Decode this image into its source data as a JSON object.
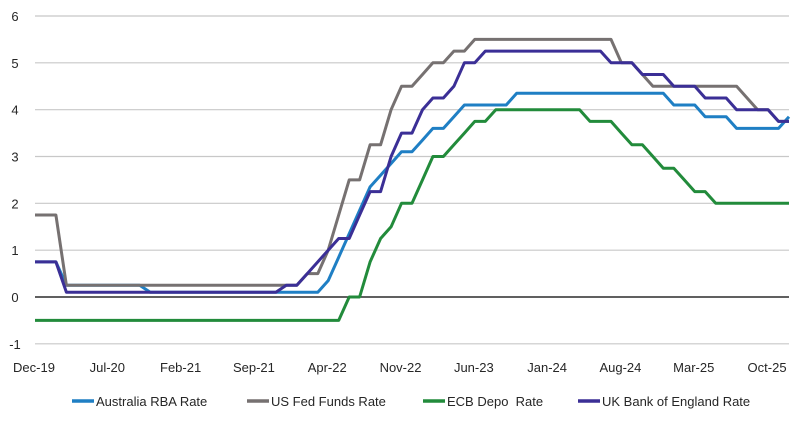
{
  "chart_data": {
    "type": "line",
    "title": "",
    "xlabel": "",
    "ylabel": "",
    "ylim": [
      -1,
      6
    ],
    "yticks": [
      -1,
      0,
      1,
      2,
      3,
      4,
      5,
      6
    ],
    "grid": "horizontal",
    "legend_position": "bottom",
    "x_frequency": "monthly",
    "x_start": "Dec-19",
    "x_end": "Dec-25",
    "x_tick_labels": [
      "Dec-19",
      "Jul-20",
      "Feb-21",
      "Sep-21",
      "Apr-22",
      "Nov-22",
      "Jun-23",
      "Jan-24",
      "Aug-24",
      "Mar-25",
      "Oct-25"
    ],
    "series": [
      {
        "name": "Australia RBA Rate",
        "color": "#1f7fc4",
        "values": [
          0.75,
          0.75,
          0.75,
          0.25,
          0.25,
          0.25,
          0.25,
          0.25,
          0.25,
          0.25,
          0.25,
          0.1,
          0.1,
          0.1,
          0.1,
          0.1,
          0.1,
          0.1,
          0.1,
          0.1,
          0.1,
          0.1,
          0.1,
          0.1,
          0.1,
          0.1,
          0.1,
          0.1,
          0.35,
          0.85,
          1.35,
          1.85,
          2.35,
          2.6,
          2.85,
          3.1,
          3.1,
          3.35,
          3.6,
          3.6,
          3.85,
          4.1,
          4.1,
          4.1,
          4.1,
          4.1,
          4.35,
          4.35,
          4.35,
          4.35,
          4.35,
          4.35,
          4.35,
          4.35,
          4.35,
          4.35,
          4.35,
          4.35,
          4.35,
          4.35,
          4.35,
          4.1,
          4.1,
          4.1,
          3.85,
          3.85,
          3.85,
          3.6,
          3.6,
          3.6,
          3.6,
          3.6,
          3.85
        ]
      },
      {
        "name": "US Fed Funds Rate",
        "color": "#767171",
        "values": [
          1.75,
          1.75,
          1.75,
          0.25,
          0.25,
          0.25,
          0.25,
          0.25,
          0.25,
          0.25,
          0.25,
          0.25,
          0.25,
          0.25,
          0.25,
          0.25,
          0.25,
          0.25,
          0.25,
          0.25,
          0.25,
          0.25,
          0.25,
          0.25,
          0.25,
          0.25,
          0.5,
          0.5,
          1.0,
          1.75,
          2.5,
          2.5,
          3.25,
          3.25,
          4.0,
          4.5,
          4.5,
          4.75,
          5.0,
          5.0,
          5.25,
          5.25,
          5.5,
          5.5,
          5.5,
          5.5,
          5.5,
          5.5,
          5.5,
          5.5,
          5.5,
          5.5,
          5.5,
          5.5,
          5.5,
          5.5,
          5.0,
          5.0,
          4.75,
          4.5,
          4.5,
          4.5,
          4.5,
          4.5,
          4.5,
          4.5,
          4.5,
          4.5,
          4.25,
          4.0,
          4.0,
          3.75,
          3.75
        ]
      },
      {
        "name": "ECB Depo  Rate",
        "color": "#228b3b",
        "values": [
          -0.5,
          -0.5,
          -0.5,
          -0.5,
          -0.5,
          -0.5,
          -0.5,
          -0.5,
          -0.5,
          -0.5,
          -0.5,
          -0.5,
          -0.5,
          -0.5,
          -0.5,
          -0.5,
          -0.5,
          -0.5,
          -0.5,
          -0.5,
          -0.5,
          -0.5,
          -0.5,
          -0.5,
          -0.5,
          -0.5,
          -0.5,
          -0.5,
          -0.5,
          -0.5,
          0,
          0,
          0.75,
          1.25,
          1.5,
          2.0,
          2.0,
          2.5,
          3.0,
          3.0,
          3.25,
          3.5,
          3.75,
          3.75,
          4.0,
          4.0,
          4.0,
          4.0,
          4.0,
          4.0,
          4.0,
          4.0,
          4.0,
          3.75,
          3.75,
          3.75,
          3.5,
          3.25,
          3.25,
          3.0,
          2.75,
          2.75,
          2.5,
          2.25,
          2.25,
          2.0,
          2.0,
          2.0,
          2.0,
          2.0,
          2.0,
          2.0,
          2.0
        ]
      },
      {
        "name": "UK Bank of England Rate",
        "color": "#3b2f96",
        "values": [
          0.75,
          0.75,
          0.75,
          0.1,
          0.1,
          0.1,
          0.1,
          0.1,
          0.1,
          0.1,
          0.1,
          0.1,
          0.1,
          0.1,
          0.1,
          0.1,
          0.1,
          0.1,
          0.1,
          0.1,
          0.1,
          0.1,
          0.1,
          0.1,
          0.25,
          0.25,
          0.5,
          0.75,
          1.0,
          1.25,
          1.25,
          1.75,
          2.25,
          2.25,
          3.0,
          3.5,
          3.5,
          4.0,
          4.25,
          4.25,
          4.5,
          5.0,
          5.0,
          5.25,
          5.25,
          5.25,
          5.25,
          5.25,
          5.25,
          5.25,
          5.25,
          5.25,
          5.25,
          5.25,
          5.25,
          5.0,
          5.0,
          5.0,
          4.75,
          4.75,
          4.75,
          4.5,
          4.5,
          4.5,
          4.25,
          4.25,
          4.25,
          4.0,
          4.0,
          4.0,
          4.0,
          3.75,
          3.75
        ]
      }
    ]
  }
}
